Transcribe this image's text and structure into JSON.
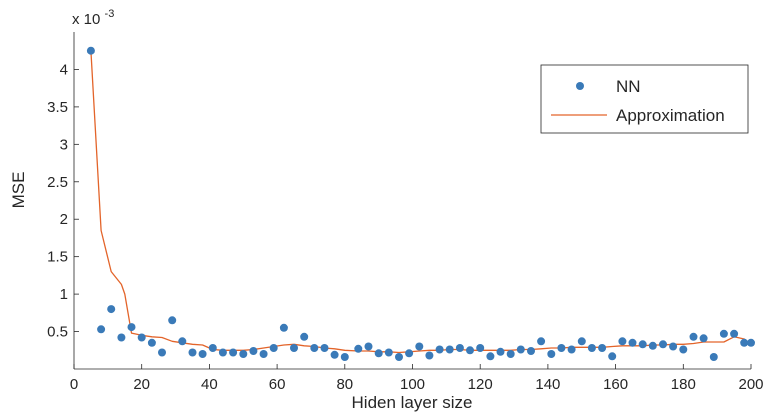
{
  "chart_data": {
    "type": "scatter",
    "xlabel": "Hiden layer size",
    "ylabel": "MSE",
    "y_exponent_label": "x 10",
    "y_exponent_power": "-3",
    "xlim": [
      0,
      200
    ],
    "ylim": [
      0,
      4.5
    ],
    "x_ticks": [
      "0",
      "20",
      "40",
      "60",
      "80",
      "100",
      "120",
      "140",
      "160",
      "180",
      "200"
    ],
    "y_ticks": [
      "0.5",
      "1",
      "1.5",
      "2",
      "2.5",
      "3",
      "3.5",
      "4"
    ],
    "grid": false,
    "legend_position": "top-right",
    "colors": {
      "NN": "#3a7ab8",
      "Approximation": "#e3642a"
    },
    "series": [
      {
        "name": "NN",
        "kind": "scatter",
        "x": [
          5,
          8,
          11,
          14,
          17,
          20,
          23,
          26,
          29,
          32,
          35,
          38,
          41,
          44,
          47,
          50,
          53,
          56,
          59,
          62,
          65,
          68,
          71,
          74,
          77,
          80,
          84,
          87,
          90,
          93,
          96,
          99,
          102,
          105,
          108,
          111,
          114,
          117,
          120,
          123,
          126,
          129,
          132,
          135,
          138,
          141,
          144,
          147,
          150,
          153,
          156,
          159,
          162,
          165,
          168,
          171,
          174,
          177,
          180,
          183,
          186,
          189,
          192,
          195,
          198,
          200
        ],
        "y": [
          4.25,
          0.53,
          0.8,
          0.42,
          0.56,
          0.42,
          0.35,
          0.22,
          0.65,
          0.37,
          0.22,
          0.2,
          0.28,
          0.22,
          0.22,
          0.2,
          0.24,
          0.2,
          0.28,
          0.55,
          0.28,
          0.43,
          0.28,
          0.28,
          0.19,
          0.16,
          0.27,
          0.3,
          0.21,
          0.22,
          0.16,
          0.21,
          0.3,
          0.18,
          0.26,
          0.26,
          0.28,
          0.25,
          0.28,
          0.17,
          0.23,
          0.2,
          0.26,
          0.24,
          0.37,
          0.2,
          0.28,
          0.26,
          0.37,
          0.28,
          0.28,
          0.17,
          0.37,
          0.35,
          0.33,
          0.31,
          0.33,
          0.3,
          0.26,
          0.43,
          0.41,
          0.16,
          0.47,
          0.47,
          0.35,
          0.35
        ]
      },
      {
        "name": "Approximation",
        "kind": "line",
        "x": [
          5,
          8,
          11,
          14,
          15,
          17,
          20,
          23,
          26,
          29,
          32,
          35,
          38,
          41,
          44,
          47,
          50,
          53,
          56,
          59,
          62,
          65,
          68,
          71,
          74,
          77,
          80,
          84,
          87,
          90,
          93,
          96,
          99,
          102,
          105,
          108,
          111,
          114,
          117,
          120,
          123,
          126,
          129,
          132,
          135,
          138,
          141,
          144,
          147,
          150,
          153,
          156,
          159,
          162,
          165,
          168,
          171,
          174,
          177,
          180,
          183,
          186,
          189,
          192,
          195,
          198,
          200
        ],
        "y": [
          4.25,
          1.85,
          1.3,
          1.13,
          1.0,
          0.48,
          0.45,
          0.43,
          0.42,
          0.37,
          0.35,
          0.33,
          0.32,
          0.26,
          0.25,
          0.25,
          0.25,
          0.26,
          0.28,
          0.3,
          0.32,
          0.33,
          0.31,
          0.3,
          0.28,
          0.27,
          0.25,
          0.24,
          0.24,
          0.23,
          0.23,
          0.22,
          0.23,
          0.24,
          0.25,
          0.25,
          0.26,
          0.26,
          0.25,
          0.25,
          0.25,
          0.25,
          0.25,
          0.26,
          0.26,
          0.27,
          0.28,
          0.28,
          0.29,
          0.29,
          0.29,
          0.29,
          0.3,
          0.31,
          0.31,
          0.31,
          0.32,
          0.32,
          0.33,
          0.33,
          0.34,
          0.36,
          0.36,
          0.36,
          0.43,
          0.4,
          0.33
        ]
      }
    ]
  }
}
